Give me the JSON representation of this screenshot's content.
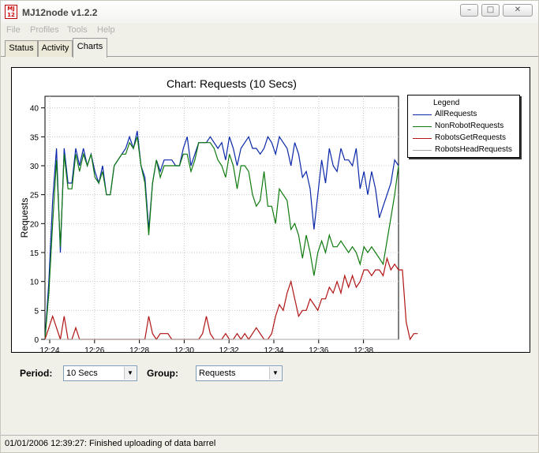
{
  "window": {
    "app_icon_text": "MJ\n12",
    "title": "MJ12node v1.2.2",
    "minimize": "–",
    "maximize": "□",
    "close": "✕"
  },
  "menu": [
    "File",
    "Profiles",
    "Tools",
    "Help"
  ],
  "tabs": [
    "Status",
    "Activity",
    "Charts"
  ],
  "selected_tab": "Charts",
  "chart_data": {
    "type": "line",
    "title": "Chart: Requests (10 Secs)",
    "xlabel": "",
    "ylabel": "Requests",
    "xlim": [
      0,
      92
    ],
    "ylim": [
      0,
      42
    ],
    "yticks": [
      0,
      5,
      10,
      15,
      20,
      25,
      30,
      35,
      40
    ],
    "xticks": [
      "12:24",
      "12:26",
      "12:28",
      "12:30",
      "12:32",
      "12:34",
      "12:36",
      "12:38"
    ],
    "legend": {
      "title": "Legend",
      "placement": "right"
    },
    "series": [
      {
        "name": "AllRequests",
        "color": "#0a28a8",
        "values": [
          0,
          10,
          24,
          33,
          15,
          33,
          27,
          27,
          33,
          30,
          33,
          30,
          32,
          29,
          27,
          30,
          25,
          25,
          30,
          31,
          32,
          33,
          35,
          33,
          36,
          30,
          28,
          19,
          27,
          31,
          29,
          31,
          31,
          31,
          30,
          30,
          33,
          35,
          30,
          32,
          34,
          34,
          34,
          35,
          34,
          33,
          34,
          31,
          35,
          33,
          30,
          33,
          34,
          35,
          33,
          33,
          32,
          33,
          35,
          34,
          32,
          35,
          34,
          33,
          30,
          34,
          32,
          28,
          29,
          26,
          19,
          25,
          31,
          27,
          33,
          30,
          29,
          33,
          31,
          31,
          30,
          33,
          26,
          29,
          25,
          29,
          26,
          21,
          23,
          25,
          27,
          31,
          30
        ]
      },
      {
        "name": "NonRobotRequests",
        "color": "#0f7a0f",
        "values": [
          0,
          8,
          20,
          31,
          16,
          32,
          26,
          26,
          32,
          29,
          32,
          30,
          32,
          28,
          27,
          29,
          25,
          25,
          30,
          31,
          32,
          32,
          34,
          33,
          35,
          30,
          27,
          18,
          27,
          31,
          28,
          30,
          30,
          30,
          30,
          30,
          32,
          32,
          29,
          31,
          34,
          34,
          34,
          34,
          33,
          31,
          30,
          28,
          32,
          30,
          26,
          30,
          30,
          29,
          25,
          23,
          24,
          29,
          23,
          23,
          20,
          26,
          25,
          24,
          19,
          20,
          18,
          14,
          18,
          15,
          11,
          15,
          17,
          15,
          18,
          16,
          16,
          17,
          16,
          15,
          16,
          15,
          13,
          16,
          15,
          16,
          15,
          14,
          13,
          17,
          21,
          25,
          30
        ]
      },
      {
        "name": "RobotsGetRequests",
        "color": "#b01414",
        "values": [
          0,
          2,
          4,
          2,
          0,
          4,
          0,
          0,
          2,
          0,
          0,
          0,
          0,
          0,
          0,
          0,
          0,
          0,
          0,
          0,
          0,
          0,
          0,
          0,
          0,
          0,
          0,
          4,
          1,
          0,
          1,
          1,
          1,
          0,
          0,
          0,
          0,
          0,
          0,
          0,
          0,
          1,
          4,
          1,
          0,
          0,
          0,
          1,
          0,
          0,
          1,
          0,
          1,
          0,
          1,
          2,
          1,
          0,
          0,
          1,
          4,
          6,
          5,
          8,
          10,
          7,
          4,
          5,
          5,
          7,
          6,
          5,
          7,
          7,
          9,
          8,
          10,
          8,
          11,
          9,
          11,
          9,
          10,
          12,
          12,
          11,
          12,
          12,
          11,
          14,
          12,
          13,
          12,
          12,
          3,
          0,
          1,
          1
        ]
      },
      {
        "name": "RobotsHeadRequests",
        "color": "#a8a8a8",
        "values": [
          0,
          0,
          0,
          0,
          0,
          0,
          0,
          0,
          0,
          0,
          0,
          0,
          0,
          0,
          0,
          0,
          0,
          0,
          0,
          0,
          0,
          0,
          0,
          0,
          0,
          0,
          0,
          0,
          0,
          0,
          0,
          0,
          0,
          0,
          0,
          0,
          0,
          0,
          0,
          0,
          0,
          0,
          0,
          0,
          0,
          0,
          0,
          0,
          0,
          0,
          0,
          0,
          0,
          0,
          0,
          0,
          0,
          0,
          0,
          0,
          0,
          0,
          0,
          0,
          0,
          0,
          0,
          0,
          0,
          0,
          0,
          0,
          0,
          0,
          0,
          0,
          0,
          0,
          0,
          0,
          0,
          0,
          0,
          0,
          0,
          0,
          0,
          0,
          0,
          0,
          0,
          0,
          0
        ]
      }
    ],
    "grid": true
  },
  "controls": {
    "period_label": "Period:",
    "period_value": "10 Secs",
    "group_label": "Group:",
    "group_value": "Requests"
  },
  "status": "01/01/2006 12:39:27: Finished uploading of data barrel"
}
